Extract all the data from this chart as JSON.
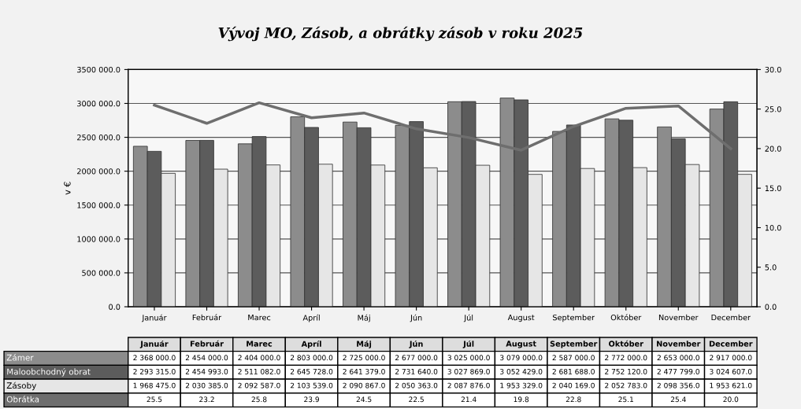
{
  "chart_data": {
    "type": "bar",
    "title": "Vývoj MO, Zásob, a obrátky zásob v roku 2025",
    "ylabel": "v €",
    "categories": [
      "Január",
      "Február",
      "Marec",
      "Apríl",
      "Máj",
      "Jún",
      "Júl",
      "August",
      "September",
      "Október",
      "November",
      "December"
    ],
    "series": [
      {
        "name": "Zámer",
        "color": "#8c8c8c",
        "values": [
          2368000,
          2454000,
          2404000,
          2803000,
          2725000,
          2677000,
          3025000,
          3079000,
          2587000,
          2772000,
          2653000,
          2917000
        ],
        "value_labels": [
          "2 368 000.0",
          "2 454 000.0",
          "2 404 000.0",
          "2 803 000.0",
          "2 725 000.0",
          "2 677 000.0",
          "3 025 000.0",
          "3 079 000.0",
          "2 587 000.0",
          "2 772 000.0",
          "2 653 000.0",
          "2 917 000.0"
        ]
      },
      {
        "name": "Maloobchodný obrat",
        "color": "#5c5c5c",
        "values": [
          2293315,
          2454993,
          2511082,
          2645728,
          2641379,
          2731640,
          3027869,
          3052429,
          2681688,
          2752120,
          2477799,
          3024607
        ],
        "value_labels": [
          "2 293 315.0",
          "2 454 993.0",
          "2 511 082.0",
          "2 645 728.0",
          "2 641 379.0",
          "2 731 640.0",
          "3 027 869.0",
          "3 052 429.0",
          "2 681 688.0",
          "2 752 120.0",
          "2 477 799.0",
          "3 024 607.0"
        ]
      },
      {
        "name": "Zásoby",
        "color": "#e6e6e6",
        "values": [
          1968475,
          2030385,
          2092587,
          2103539,
          2090867,
          2050363,
          2087876,
          1953329,
          2040169,
          2052783,
          2098356,
          1953621
        ],
        "value_labels": [
          "1 968 475.0",
          "2 030 385.0",
          "2 092 587.0",
          "2 103 539.0",
          "2 090 867.0",
          "2 050 363.0",
          "2 087 876.0",
          "1 953 329.0",
          "2 040 169.0",
          "2 052 783.0",
          "2 098 356.0",
          "1 953 621.0"
        ]
      },
      {
        "name": "Obrátka",
        "color": "#6e6e6e",
        "type": "line",
        "axis": "y2",
        "values": [
          25.5,
          23.2,
          25.8,
          23.9,
          24.5,
          22.5,
          21.4,
          19.8,
          22.8,
          25.1,
          25.4,
          20.0
        ],
        "value_labels": [
          "25.5",
          "23.2",
          "25.8",
          "23.9",
          "24.5",
          "22.5",
          "21.4",
          "19.8",
          "22.8",
          "25.1",
          "25.4",
          "20.0"
        ]
      }
    ],
    "ylim": [
      0,
      3500000
    ],
    "yticks": [
      {
        "value": 0,
        "label": "0.0"
      },
      {
        "value": 500000,
        "label": "500 000.0"
      },
      {
        "value": 1000000,
        "label": "1000 000.0"
      },
      {
        "value": 1500000,
        "label": "1500 000.0"
      },
      {
        "value": 2000000,
        "label": "2000 000.0"
      },
      {
        "value": 2500000,
        "label": "2500 000.0"
      },
      {
        "value": 3000000,
        "label": "3000 000.0"
      },
      {
        "value": 3500000,
        "label": "3500 000.0"
      }
    ],
    "y2lim": [
      0,
      30
    ],
    "y2ticks": [
      {
        "value": 0,
        "label": "0.0"
      },
      {
        "value": 5,
        "label": "5.0"
      },
      {
        "value": 10,
        "label": "10.0"
      },
      {
        "value": 15,
        "label": "15.0"
      },
      {
        "value": 20,
        "label": "20.0"
      },
      {
        "value": 25,
        "label": "25.0"
      },
      {
        "value": 30,
        "label": "30.0"
      }
    ],
    "grid": "y",
    "legend": false
  }
}
